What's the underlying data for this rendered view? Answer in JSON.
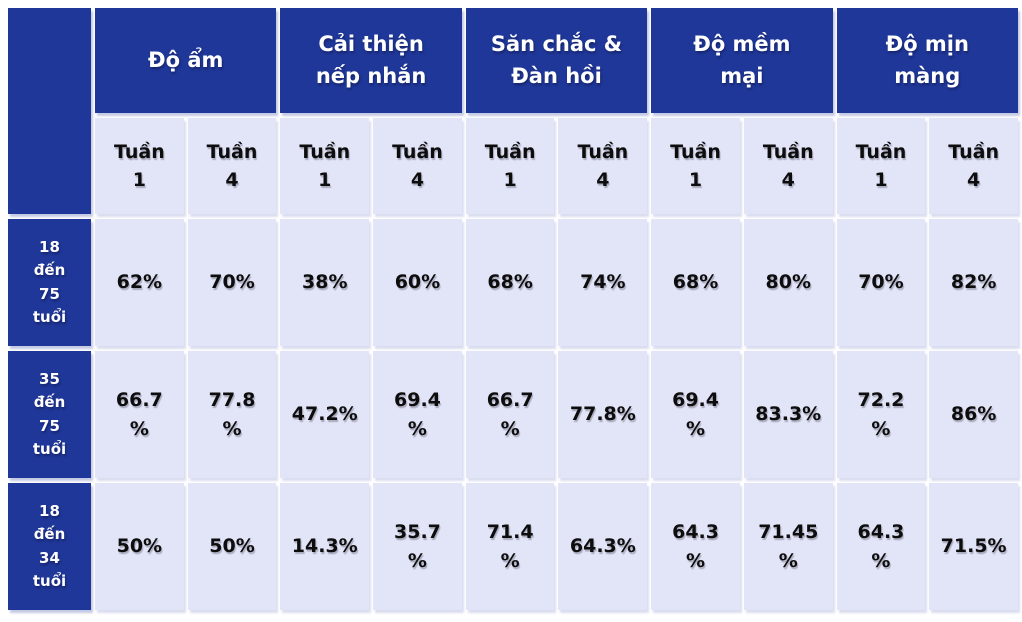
{
  "table": {
    "corner_label": "",
    "column_groups": [
      {
        "label": "Độ ẩm"
      },
      {
        "label": "Cải thiện\nnếp nhắn"
      },
      {
        "label": "Săn chắc &\nĐàn hồi"
      },
      {
        "label": "Độ mềm\nmại"
      },
      {
        "label": "Độ mịn\nmàng"
      }
    ],
    "week_headers": [
      "Tuần\n1",
      "Tuần\n4",
      "Tuần\n1",
      "Tuần\n4",
      "Tuần\n1",
      "Tuần\n4",
      "Tuần\n1",
      "Tuần\n4",
      "Tuần\n1",
      "Tuần\n4"
    ],
    "rows": [
      {
        "label": "18\nđến\n75\ntuổi",
        "values": [
          "62%",
          "70%",
          "38%",
          "60%",
          "68%",
          "74%",
          "68%",
          "80%",
          "70%",
          "82%"
        ]
      },
      {
        "label": "35\nđến\n75\ntuổi",
        "values": [
          "66.7\n%",
          "77.8\n%",
          "47.2%",
          "69.4\n%",
          "66.7\n%",
          "77.8%",
          "69.4\n%",
          "83.3%",
          "72.2\n%",
          "86%"
        ]
      },
      {
        "label": "18\nđến\n34\ntuổi",
        "values": [
          "50%",
          "50%",
          "14.3%",
          "35.7\n%",
          "71.4\n%",
          "64.3%",
          "64.3\n%",
          "71.45\n%",
          "64.3\n%",
          "71.5%"
        ]
      }
    ],
    "colors": {
      "header_bg": "#1f3798",
      "header_text": "#ffffff",
      "cell_bg": "#e2e4f7",
      "cell_text": "#0d0d0d",
      "page_bg": "#ffffff"
    }
  },
  "chart_data": {
    "type": "table",
    "title": "",
    "column_groups": [
      "Độ ẩm",
      "Cải thiện nếp nhắn",
      "Săn chắc & Đàn hồi",
      "Độ mềm mại",
      "Độ mịn màng"
    ],
    "sub_columns_per_group": [
      "Tuần 1",
      "Tuần 4"
    ],
    "row_labels": [
      "18 đến 75 tuổi",
      "35 đến 75 tuổi",
      "18 đến 34 tuổi"
    ],
    "values_percent": [
      [
        62,
        70,
        38,
        60,
        68,
        74,
        68,
        80,
        70,
        82
      ],
      [
        66.7,
        77.8,
        47.2,
        69.4,
        66.7,
        77.8,
        69.4,
        83.3,
        72.2,
        86
      ],
      [
        50,
        50,
        14.3,
        35.7,
        71.4,
        64.3,
        64.3,
        71.45,
        64.3,
        71.5
      ]
    ]
  }
}
